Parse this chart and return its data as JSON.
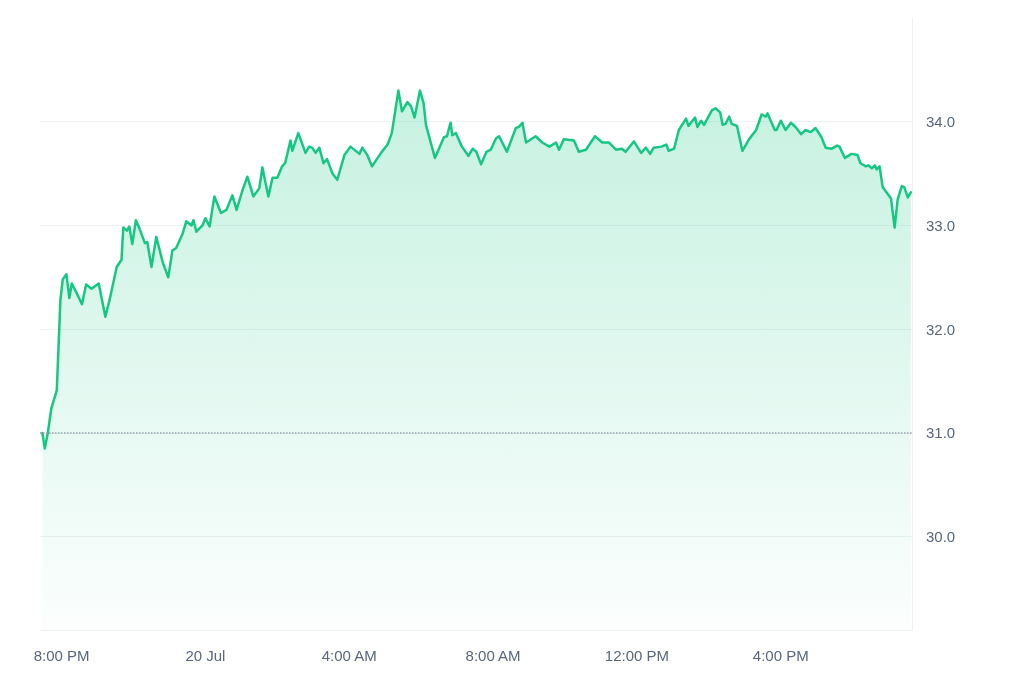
{
  "chart_data": {
    "type": "area",
    "x": [
      "--07-19T19:28",
      "--07-19T19:32",
      "--07-19T19:37",
      "--07-19T19:43",
      "--07-19T19:52",
      "--07-19T19:58",
      "--07-19T20:02",
      "--07-19T20:08",
      "--07-19T20:13",
      "--07-19T20:17",
      "--07-19T20:25",
      "--07-19T20:34",
      "--07-19T20:41",
      "--07-19T20:50",
      "--07-19T21:02",
      "--07-19T21:13",
      "--07-19T21:20",
      "--07-19T21:32",
      "--07-19T21:40",
      "--07-19T21:43",
      "--07-19T21:49",
      "--07-19T21:53",
      "--07-19T21:58",
      "--07-19T22:04",
      "--07-19T22:10",
      "--07-19T22:19",
      "--07-19T22:23",
      "--07-19T22:30",
      "--07-19T22:38",
      "--07-19T22:49",
      "--07-19T22:58",
      "--07-19T23:05",
      "--07-19T23:11",
      "--07-19T23:22",
      "--07-19T23:28",
      "--07-19T23:37",
      "--07-19T23:40",
      "--07-19T23:45",
      "--07-19T23:55",
      "--07-20T00:00",
      "--07-20T00:07",
      "--07-20T00:15",
      "--07-20T00:26",
      "--07-20T00:35",
      "--07-20T00:45",
      "--07-20T00:52",
      "--07-20T01:02",
      "--07-20T01:10",
      "--07-20T01:20",
      "--07-20T01:30",
      "--07-20T01:35",
      "--07-20T01:45",
      "--07-20T01:52",
      "--07-20T02:00",
      "--07-20T02:08",
      "--07-20T02:13",
      "--07-20T02:22",
      "--07-20T02:25",
      "--07-20T02:35",
      "--07-20T02:47",
      "--07-20T02:53",
      "--07-20T02:58",
      "--07-20T03:04",
      "--07-20T03:10",
      "--07-20T03:17",
      "--07-20T03:23",
      "--07-20T03:32",
      "--07-20T03:40",
      "--07-20T03:52",
      "--07-20T04:02",
      "--07-20T04:17",
      "--07-20T04:22",
      "--07-20T04:30",
      "--07-20T04:38",
      "--07-20T04:53",
      "--07-20T05:04",
      "--07-20T05:11",
      "--07-20T05:22",
      "--07-20T05:28",
      "--07-20T05:37",
      "--07-20T05:43",
      "--07-20T05:49",
      "--07-20T05:58",
      "--07-20T06:04",
      "--07-20T06:08",
      "--07-20T06:23",
      "--07-20T06:38",
      "--07-20T06:43",
      "--07-20T06:49",
      "--07-20T06:52",
      "--07-20T06:58",
      "--07-20T07:08",
      "--07-20T07:19",
      "--07-20T07:26",
      "--07-20T07:32",
      "--07-20T07:40",
      "--07-20T07:49",
      "--07-20T07:56",
      "--07-20T08:05",
      "--07-20T08:10",
      "--07-20T08:23",
      "--07-20T08:38",
      "--07-20T08:43",
      "--07-20T08:49",
      "--07-20T08:55",
      "--07-20T09:11",
      "--07-20T09:22",
      "--07-20T09:34",
      "--07-20T09:45",
      "--07-20T09:50",
      "--07-20T09:58",
      "--07-20T10:15",
      "--07-20T10:23",
      "--07-20T10:35",
      "--07-20T10:43",
      "--07-20T10:50",
      "--07-20T11:02",
      "--07-20T11:13",
      "--07-20T11:25",
      "--07-20T11:35",
      "--07-20T11:41",
      "--07-20T11:55",
      "--07-20T12:07",
      "--07-20T12:15",
      "--07-20T12:22",
      "--07-20T12:28",
      "--07-20T12:41",
      "--07-20T12:49",
      "--07-20T12:53",
      "--07-20T13:02",
      "--07-20T13:10",
      "--07-20T13:22",
      "--07-20T13:26",
      "--07-20T13:37",
      "--07-20T13:41",
      "--07-20T13:47",
      "--07-20T13:52",
      "--07-20T14:05",
      "--07-20T14:11",
      "--07-20T14:19",
      "--07-20T14:23",
      "--07-20T14:28",
      "--07-20T14:34",
      "--07-20T14:38",
      "--07-20T14:47",
      "--07-20T14:56",
      "--07-20T15:07",
      "--07-20T15:19",
      "--07-20T15:28",
      "--07-20T15:35",
      "--07-20T15:38",
      "--07-20T15:50",
      "--07-20T15:53",
      "--07-20T16:00",
      "--07-20T16:08",
      "--07-20T16:17",
      "--07-20T16:26",
      "--07-20T16:34",
      "--07-20T16:41",
      "--07-20T16:50",
      "--07-20T16:58",
      "--07-20T17:08",
      "--07-20T17:15",
      "--07-20T17:25",
      "--07-20T17:34",
      "--07-20T17:38",
      "--07-20T17:47",
      "--07-20T17:58",
      "--07-20T18:08",
      "--07-20T18:13",
      "--07-20T18:22",
      "--07-20T18:26",
      "--07-20T18:32",
      "--07-20T18:37",
      "--07-20T18:40",
      "--07-20T18:45",
      "--07-20T18:50",
      "--07-20T19:04",
      "--07-20T19:10",
      "--07-20T19:15",
      "--07-20T19:22",
      "--07-20T19:26",
      "--07-20T19:32",
      "--07-20T19:37"
    ],
    "series": [
      {
        "color": "#16c784",
        "values": [
          31.0,
          30.85,
          31.0,
          31.24,
          31.41,
          32.28,
          32.48,
          32.53,
          32.3,
          32.44,
          32.35,
          32.24,
          32.43,
          32.39,
          32.44,
          32.12,
          32.28,
          32.6,
          32.67,
          32.98,
          32.95,
          32.99,
          32.82,
          33.05,
          32.97,
          32.83,
          32.84,
          32.6,
          32.89,
          32.64,
          32.5,
          32.76,
          32.78,
          32.92,
          33.04,
          33.0,
          33.05,
          32.94,
          33.0,
          33.07,
          32.99,
          33.28,
          33.12,
          33.15,
          33.29,
          33.15,
          33.34,
          33.47,
          33.28,
          33.36,
          33.56,
          33.28,
          33.46,
          33.46,
          33.57,
          33.6,
          33.82,
          33.72,
          33.89,
          33.7,
          33.76,
          33.75,
          33.7,
          33.75,
          33.6,
          33.64,
          33.5,
          33.44,
          33.68,
          33.76,
          33.69,
          33.75,
          33.68,
          33.57,
          33.7,
          33.78,
          33.89,
          34.3,
          34.1,
          34.19,
          34.15,
          34.04,
          34.3,
          34.18,
          33.97,
          33.65,
          33.85,
          33.86,
          33.99,
          33.87,
          33.89,
          33.76,
          33.67,
          33.74,
          33.71,
          33.59,
          33.71,
          33.73,
          33.84,
          33.86,
          33.71,
          33.94,
          33.95,
          33.99,
          33.8,
          33.86,
          33.8,
          33.76,
          33.8,
          33.73,
          33.83,
          33.82,
          33.71,
          33.73,
          33.8,
          33.86,
          33.8,
          33.8,
          33.73,
          33.74,
          33.71,
          33.81,
          33.7,
          33.75,
          33.69,
          33.75,
          33.76,
          33.78,
          33.72,
          33.74,
          33.92,
          34.03,
          33.96,
          34.04,
          33.95,
          34.01,
          33.97,
          34.11,
          34.13,
          34.09,
          33.97,
          33.98,
          34.05,
          33.98,
          33.96,
          33.72,
          33.83,
          33.92,
          34.07,
          34.05,
          34.08,
          33.92,
          33.92,
          34.01,
          33.92,
          33.99,
          33.94,
          33.88,
          33.92,
          33.9,
          33.94,
          33.85,
          33.75,
          33.74,
          33.77,
          33.76,
          33.65,
          33.69,
          33.68,
          33.6,
          33.57,
          33.58,
          33.55,
          33.58,
          33.54,
          33.57,
          33.37,
          33.26,
          32.98,
          33.25,
          33.38,
          33.37,
          33.27,
          33.32
        ]
      }
    ],
    "xlim": [
      "--07-19T19:24",
      "--07-20T19:39"
    ],
    "xticks": [
      {
        "value": "--07-19T20:00",
        "label": "8:00 PM"
      },
      {
        "value": "--07-20T00:00",
        "label": "20 Jul"
      },
      {
        "value": "--07-20T04:00",
        "label": "4:00 AM"
      },
      {
        "value": "--07-20T08:00",
        "label": "8:00 AM"
      },
      {
        "value": "--07-20T12:00",
        "label": "12:00 PM"
      },
      {
        "value": "--07-20T16:00",
        "label": "4:00 PM"
      }
    ],
    "ylim": [
      29.1,
      35.0
    ],
    "yticks": [
      {
        "value": 30,
        "label": "30.0"
      },
      {
        "value": 31,
        "label": "31.0"
      },
      {
        "value": 32,
        "label": "32.0"
      },
      {
        "value": 33,
        "label": "33.0"
      },
      {
        "value": 34,
        "label": "34.0"
      }
    ],
    "ref_lines": [
      {
        "axis": "y",
        "value": 31.0,
        "color": "#9aa0b0",
        "line_style": "dotted"
      }
    ],
    "grid": "y",
    "marker": "none",
    "line_style": "solid"
  }
}
